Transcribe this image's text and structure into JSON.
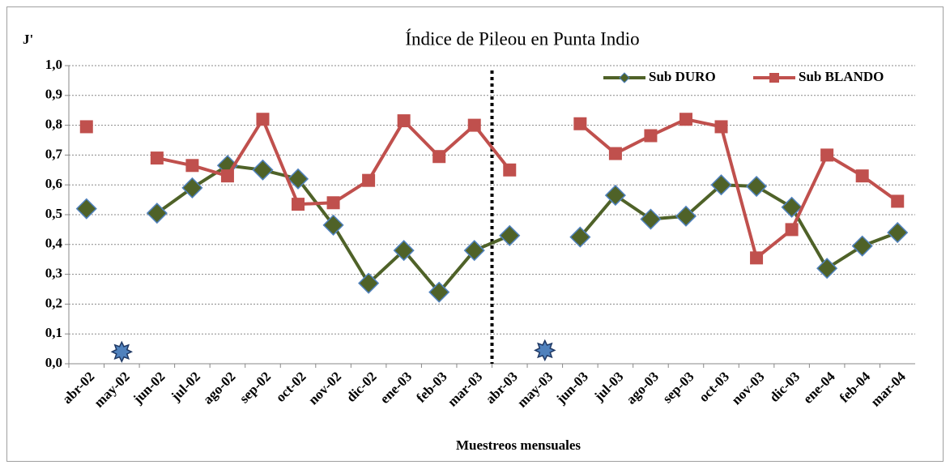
{
  "chart_data": {
    "type": "line",
    "title": "Índice de Pileou en Punta Indio",
    "y_label": "J'",
    "x_label": "Muestreos mensuales",
    "categories": [
      "abr-02",
      "may-02",
      "jun-02",
      "jul-02",
      "ago-02",
      "sep-02",
      "oct-02",
      "nov-02",
      "dic-02",
      "ene-03",
      "feb-03",
      "mar-03",
      "abr-03",
      "may-03",
      "jun-03",
      "jul-03",
      "ago-03",
      "sep-03",
      "oct-03",
      "nov-03",
      "dic-03",
      "ene-04",
      "feb-04",
      "mar-04"
    ],
    "series": [
      {
        "name": "Sub DURO",
        "color": "#4f6228",
        "marker": "diamond",
        "values": [
          0.52,
          null,
          0.505,
          0.59,
          0.665,
          0.65,
          0.62,
          0.465,
          0.27,
          0.38,
          0.24,
          0.38,
          0.43,
          null,
          0.425,
          0.565,
          0.485,
          0.495,
          0.6,
          0.595,
          0.525,
          0.32,
          0.395,
          0.44
        ]
      },
      {
        "name": "Sub BLANDO",
        "color": "#c0504d",
        "marker": "square",
        "values": [
          0.795,
          null,
          0.69,
          0.665,
          0.63,
          0.82,
          0.535,
          0.54,
          0.615,
          0.815,
          0.695,
          0.8,
          0.65,
          null,
          0.805,
          0.705,
          0.765,
          0.82,
          0.795,
          0.355,
          0.45,
          0.7,
          0.63,
          0.545
        ]
      },
      {
        "color": "#4f81bd",
        "marker": "star",
        "values": [
          null,
          0.04,
          null,
          null,
          null,
          null,
          null,
          null,
          null,
          null,
          null,
          null,
          null,
          0.045,
          null,
          null,
          null,
          null,
          null,
          null,
          null,
          null,
          null,
          null
        ]
      }
    ],
    "ylim": [
      0,
      1
    ],
    "yticks": [
      {
        "value": 0,
        "label": "0,0"
      },
      {
        "value": 0.1,
        "label": "0,1"
      },
      {
        "value": 0.2,
        "label": "0,2"
      },
      {
        "value": 0.3,
        "label": "0,3"
      },
      {
        "value": 0.4,
        "label": "0,4"
      },
      {
        "value": 0.5,
        "label": "0,5"
      },
      {
        "value": 0.6,
        "label": "0,6"
      },
      {
        "value": 0.7,
        "label": "0,7"
      },
      {
        "value": 0.8,
        "label": "0,8"
      },
      {
        "value": 0.9,
        "label": "0,9"
      },
      {
        "value": 1,
        "label": "1,0"
      }
    ],
    "grid": true,
    "legend": "top-right"
  }
}
